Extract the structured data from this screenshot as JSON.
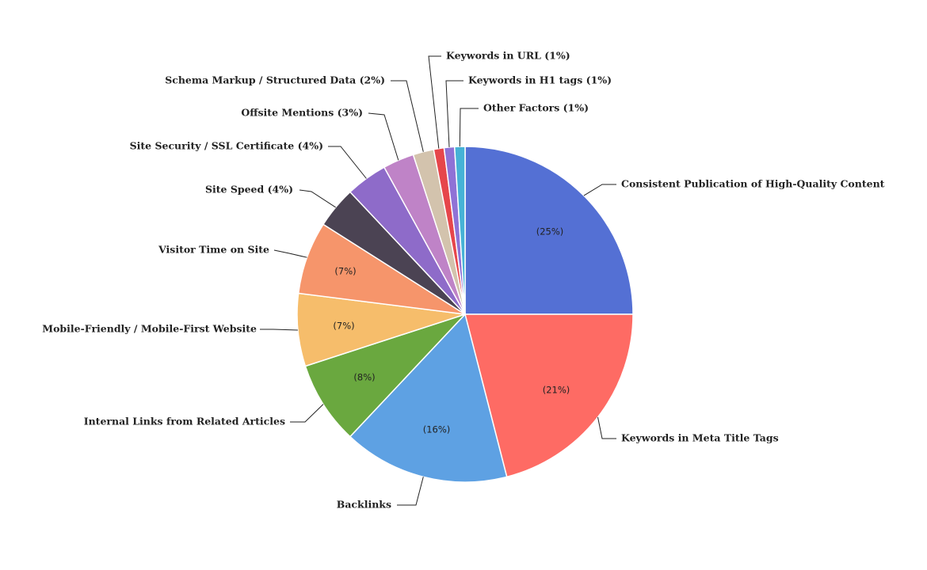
{
  "chart_data": {
    "type": "pie",
    "title": "",
    "legend": "none",
    "slices": [
      {
        "label": "Consistent Publication of High-Quality Content",
        "value": 25,
        "color": "#5470d4",
        "inside_label": "(25%)",
        "outside_label": "Consistent Publication of High-Quality Content"
      },
      {
        "label": "Keywords in Meta Title Tags",
        "value": 21,
        "color": "#fe6b64",
        "inside_label": "(21%)",
        "outside_label": "Keywords in Meta Title Tags"
      },
      {
        "label": "Backlinks",
        "value": 16,
        "color": "#5ea1e3",
        "inside_label": "(16%)",
        "outside_label": "Backlinks"
      },
      {
        "label": "Internal Links from Related Articles",
        "value": 8,
        "color": "#6aa83f",
        "inside_label": "(8%)",
        "outside_label": "Internal Links from Related Articles"
      },
      {
        "label": "Mobile-Friendly / Mobile-First Website",
        "value": 7,
        "color": "#f6bd6b",
        "inside_label": "(7%)",
        "outside_label": "Mobile-Friendly / Mobile-First Website"
      },
      {
        "label": "Visitor Time on Site",
        "value": 7,
        "color": "#f6956b",
        "inside_label": "(7%)",
        "outside_label": "Visitor Time on Site"
      },
      {
        "label": "Site Speed",
        "value": 4,
        "color": "#4b4353",
        "inside_label": "",
        "outside_label": "Site Speed (4%)"
      },
      {
        "label": "Site Security / SSL Certificate",
        "value": 4,
        "color": "#8e6bc9",
        "inside_label": "",
        "outside_label": "Site Security / SSL Certificate (4%)"
      },
      {
        "label": "Offsite Mentions",
        "value": 3,
        "color": "#bf83c7",
        "inside_label": "",
        "outside_label": "Offsite Mentions (3%)"
      },
      {
        "label": "Schema Markup / Structured Data",
        "value": 2,
        "color": "#d3c3ad",
        "inside_label": "",
        "outside_label": "Schema Markup / Structured Data (2%)"
      },
      {
        "label": "Keywords in URL",
        "value": 1,
        "color": "#e6464b",
        "inside_label": "",
        "outside_label": "Keywords in URL (1%)"
      },
      {
        "label": "Keywords in H1 tags",
        "value": 1,
        "color": "#8f72d6",
        "inside_label": "",
        "outside_label": "Keywords in H1 tags (1%)"
      },
      {
        "label": "Other Factors",
        "value": 1,
        "color": "#46b2d6",
        "inside_label": "",
        "outside_label": "Other Factors (1%)"
      }
    ]
  }
}
